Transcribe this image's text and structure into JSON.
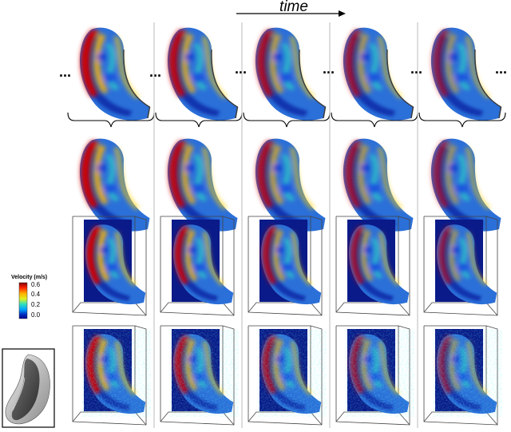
{
  "figure": {
    "time_label": "time",
    "continuation": "...",
    "columns": 5,
    "rows": [
      "mesh",
      "smooth",
      "box",
      "noisy"
    ],
    "frame_intensity": [
      1.0,
      0.9,
      0.8,
      0.7,
      0.62
    ]
  },
  "colorbar": {
    "title": "Velocity (m/s)",
    "ticks": [
      "0.6",
      "0.4",
      "0.2",
      "0.0"
    ],
    "colors": [
      "#7f0000",
      "#ff2000",
      "#ffb000",
      "#e0f020",
      "#30e0c0",
      "#00a0ff",
      "#0030c0",
      "#00008f"
    ]
  },
  "inset": {
    "name": "geometry"
  }
}
